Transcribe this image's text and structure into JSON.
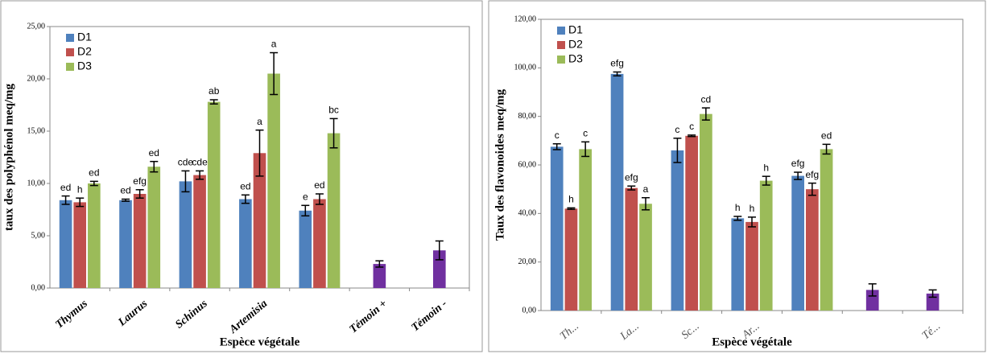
{
  "chart_data": [
    {
      "type": "bar",
      "y_label": "taux des polyphénol meq/mg",
      "x_label": "Espèce végétale",
      "categories": [
        "Thymus",
        "Laurus",
        "Schinus",
        "Artemisia",
        null,
        "Témoin +",
        "Témoin -"
      ],
      "ylim": [
        0,
        25
      ],
      "yticks": [
        {
          "value": 0,
          "label": "0,00"
        },
        {
          "value": 5,
          "label": "5,00"
        },
        {
          "value": 10,
          "label": "10,00"
        },
        {
          "value": 15,
          "label": "15,00"
        },
        {
          "value": 20,
          "label": "20,00"
        },
        {
          "value": 25,
          "label": "25,00"
        }
      ],
      "legend": "upper left",
      "series": [
        {
          "name": "D1",
          "color": "#4f81bd",
          "values": [
            8.4,
            8.4,
            10.2,
            8.5,
            7.4,
            null,
            null
          ],
          "errors": [
            0.4,
            0.1,
            1.0,
            0.4,
            0.5,
            null,
            null
          ],
          "annotations": [
            "ed",
            "ed",
            "cde",
            "ed",
            "e",
            null,
            null
          ]
        },
        {
          "name": "D2",
          "color": "#c0504d",
          "values": [
            8.2,
            9.0,
            10.8,
            12.9,
            8.5,
            null,
            null
          ],
          "errors": [
            0.4,
            0.4,
            0.4,
            2.2,
            0.5,
            null,
            null
          ],
          "annotations": [
            "h",
            "efg",
            "cde",
            "a",
            "ed",
            null,
            null
          ]
        },
        {
          "name": "D3",
          "color": "#9bbb59",
          "values": [
            10.0,
            11.6,
            17.8,
            20.5,
            14.8,
            null,
            null
          ],
          "errors": [
            0.2,
            0.5,
            0.2,
            2.0,
            1.4,
            null,
            null
          ],
          "annotations": [
            "ed",
            "ed",
            "ab",
            "a",
            "bc",
            null,
            null
          ]
        },
        {
          "color": "#7030a0",
          "values": [
            null,
            null,
            null,
            null,
            null,
            2.3,
            3.6
          ],
          "errors": [
            null,
            null,
            null,
            null,
            null,
            0.3,
            0.9
          ]
        }
      ]
    },
    {
      "type": "bar",
      "y_label": "Taux des flavonoides  meq/mg",
      "x_label": "Espèce végétale",
      "categories": [
        "Th...",
        "La...",
        "Sc...",
        "Ar...",
        null,
        null,
        "Té..."
      ],
      "ylim": [
        0,
        120
      ],
      "yticks": [
        {
          "value": 0,
          "label": "0,00"
        },
        {
          "value": 20,
          "label": "20,00"
        },
        {
          "value": 40,
          "label": "40,00"
        },
        {
          "value": 60,
          "label": "60,00"
        },
        {
          "value": 80,
          "label": "80,00"
        },
        {
          "value": 100,
          "label": "100,00"
        },
        {
          "value": 120,
          "label": "120,00"
        }
      ],
      "legend": "upper left",
      "series": [
        {
          "name": "D1",
          "color": "#4f81bd",
          "values": [
            67.5,
            97.5,
            66,
            38,
            55.5,
            null,
            null
          ],
          "errors": [
            1.2,
            0.8,
            5,
            0.8,
            1.5,
            null,
            null
          ],
          "annotations": [
            "c",
            "efg",
            "c",
            "h",
            "efg",
            null,
            null
          ]
        },
        {
          "name": "D2",
          "color": "#c0504d",
          "values": [
            42,
            50.5,
            72,
            36.5,
            50,
            null,
            null
          ],
          "errors": [
            0.3,
            0.8,
            0.3,
            2,
            2.5,
            null,
            null
          ],
          "annotations": [
            "h",
            "efg",
            "c",
            "h",
            "efg",
            null,
            null
          ]
        },
        {
          "name": "D3",
          "color": "#9bbb59",
          "values": [
            66.5,
            44,
            81,
            53.5,
            66.5,
            null,
            null
          ],
          "errors": [
            3,
            2.5,
            2.5,
            1.8,
            2,
            null,
            null
          ],
          "annotations": [
            "c",
            "a",
            "cd",
            "h",
            "ed",
            null,
            null
          ]
        },
        {
          "color": "#7030a0",
          "values": [
            null,
            null,
            null,
            null,
            null,
            8.5,
            7
          ],
          "errors": [
            null,
            null,
            null,
            null,
            null,
            2.5,
            1.5
          ]
        }
      ]
    }
  ]
}
